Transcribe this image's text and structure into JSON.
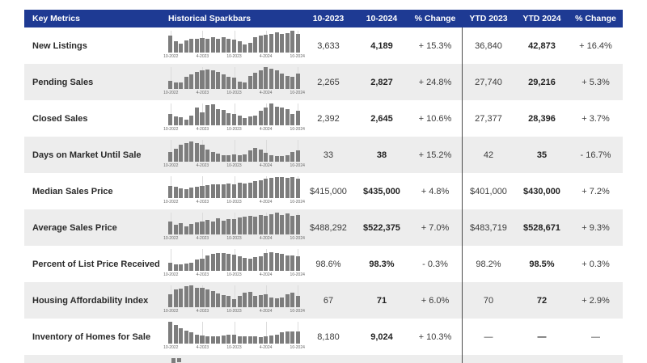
{
  "table": {
    "headers": [
      "Key Metrics",
      "Historical Sparkbars",
      "10-2023",
      "10-2024",
      "% Change",
      "YTD 2023",
      "YTD 2024",
      "% Change"
    ]
  },
  "chart_data": {
    "type": "table",
    "columns": [
      "Key Metrics",
      "Historical Sparkbars",
      "10-2023",
      "10-2024",
      "% Change",
      "YTD 2023",
      "YTD 2024",
      "% Change"
    ],
    "sparkline_x_ticks": [
      "10-2022",
      "4-2023",
      "10-2023",
      "4-2024",
      "10-2024"
    ],
    "sparkline_note": "bar sparklines, 25 monthly bars from 10-2022 to 10-2024, heights are relative 0-100",
    "rows": [
      {
        "metric": "New Listings",
        "oct_2023": "3,633",
        "oct_2024": "4,189",
        "pct_change": "+ 15.3%",
        "ytd_2023": "36,840",
        "ytd_2024": "42,873",
        "ytd_pct_change": "+ 16.4%",
        "sparkbar_relative_heights": [
          78,
          50,
          42,
          56,
          64,
          62,
          68,
          64,
          72,
          64,
          70,
          62,
          58,
          50,
          38,
          44,
          70,
          76,
          80,
          84,
          94,
          86,
          90,
          100,
          84
        ]
      },
      {
        "metric": "Pending Sales",
        "oct_2023": "2,265",
        "oct_2024": "2,827",
        "pct_change": "+ 24.8%",
        "ytd_2023": "27,740",
        "ytd_2024": "29,216",
        "ytd_pct_change": "+ 5.3%",
        "sparkbar_relative_heights": [
          36,
          28,
          30,
          55,
          66,
          76,
          86,
          90,
          84,
          76,
          66,
          56,
          50,
          34,
          30,
          60,
          74,
          84,
          100,
          94,
          84,
          70,
          60,
          56,
          70
        ]
      },
      {
        "metric": "Closed Sales",
        "oct_2023": "2,392",
        "oct_2024": "2,645",
        "pct_change": "+ 10.6%",
        "ytd_2023": "27,377",
        "ytd_2024": "28,396",
        "ytd_pct_change": "+ 3.7%",
        "sparkbar_relative_heights": [
          50,
          42,
          38,
          25,
          45,
          80,
          60,
          92,
          95,
          75,
          70,
          56,
          50,
          45,
          35,
          40,
          45,
          65,
          80,
          100,
          85,
          80,
          75,
          50,
          65
        ]
      },
      {
        "metric": "Days on Market Until Sale",
        "oct_2023": "33",
        "oct_2024": "38",
        "pct_change": "+ 15.2%",
        "ytd_2023": "42",
        "ytd_2024": "35",
        "ytd_pct_change": "- 16.7%",
        "sparkbar_relative_heights": [
          45,
          60,
          76,
          86,
          92,
          86,
          76,
          56,
          45,
          36,
          30,
          30,
          34,
          30,
          34,
          50,
          62,
          56,
          40,
          30,
          26,
          26,
          30,
          46,
          52
        ]
      },
      {
        "metric": "Median Sales Price",
        "oct_2023": "$415,000",
        "oct_2024": "$435,000",
        "pct_change": "+ 4.8%",
        "ytd_2023": "$401,000",
        "ytd_2024": "$430,000",
        "ytd_pct_change": "+ 7.2%",
        "sparkbar_relative_heights": [
          55,
          50,
          46,
          42,
          48,
          52,
          56,
          60,
          62,
          64,
          62,
          66,
          64,
          70,
          68,
          72,
          78,
          82,
          88,
          92,
          95,
          95,
          92,
          96,
          90
        ]
      },
      {
        "metric": "Average Sales Price",
        "oct_2023": "$488,292",
        "oct_2024": "$522,375",
        "pct_change": "+ 7.0%",
        "ytd_2023": "$483,719",
        "ytd_2024": "$528,671",
        "ytd_pct_change": "+ 9.3%",
        "sparkbar_relative_heights": [
          60,
          46,
          50,
          38,
          48,
          56,
          60,
          66,
          60,
          75,
          64,
          72,
          70,
          76,
          80,
          84,
          80,
          88,
          84,
          94,
          100,
          90,
          95,
          86,
          88
        ]
      },
      {
        "metric": "Percent of List Price Received",
        "oct_2023": "98.6%",
        "oct_2024": "98.3%",
        "pct_change": "- 0.3%",
        "ytd_2023": "98.2%",
        "ytd_2024": "98.5%",
        "ytd_pct_change": "+ 0.3%",
        "sparkbar_relative_heights": [
          36,
          30,
          30,
          32,
          38,
          50,
          56,
          70,
          76,
          80,
          80,
          78,
          74,
          68,
          60,
          56,
          62,
          66,
          80,
          86,
          80,
          76,
          72,
          70,
          66
        ]
      },
      {
        "metric": "Housing Affordability Index",
        "oct_2023": "67",
        "oct_2024": "71",
        "pct_change": "+ 6.0%",
        "ytd_2023": "70",
        "ytd_2024": "72",
        "ytd_pct_change": "+ 2.9%",
        "sparkbar_relative_heights": [
          60,
          80,
          86,
          95,
          100,
          90,
          88,
          80,
          74,
          64,
          56,
          50,
          36,
          50,
          66,
          70,
          50,
          56,
          60,
          46,
          42,
          46,
          60,
          66,
          50
        ]
      },
      {
        "metric": "Inventory of Homes for Sale",
        "oct_2023": "8,180",
        "oct_2024": "9,024",
        "pct_change": "+ 10.3%",
        "ytd_2023": "—",
        "ytd_2024": "—",
        "ytd_pct_change": "—",
        "sparkbar_relative_heights": [
          100,
          86,
          70,
          60,
          50,
          42,
          38,
          35,
          34,
          34,
          38,
          40,
          42,
          35,
          34,
          34,
          32,
          28,
          35,
          38,
          42,
          50,
          55,
          56,
          55
        ]
      }
    ],
    "partial_next_row_sparkbar": [
      60,
      50
    ]
  },
  "colors": {
    "header_bg": "#1e3a93",
    "row_alt": "#ededed",
    "bar": "#7d7d7d",
    "divider": "#4b4b4b"
  }
}
